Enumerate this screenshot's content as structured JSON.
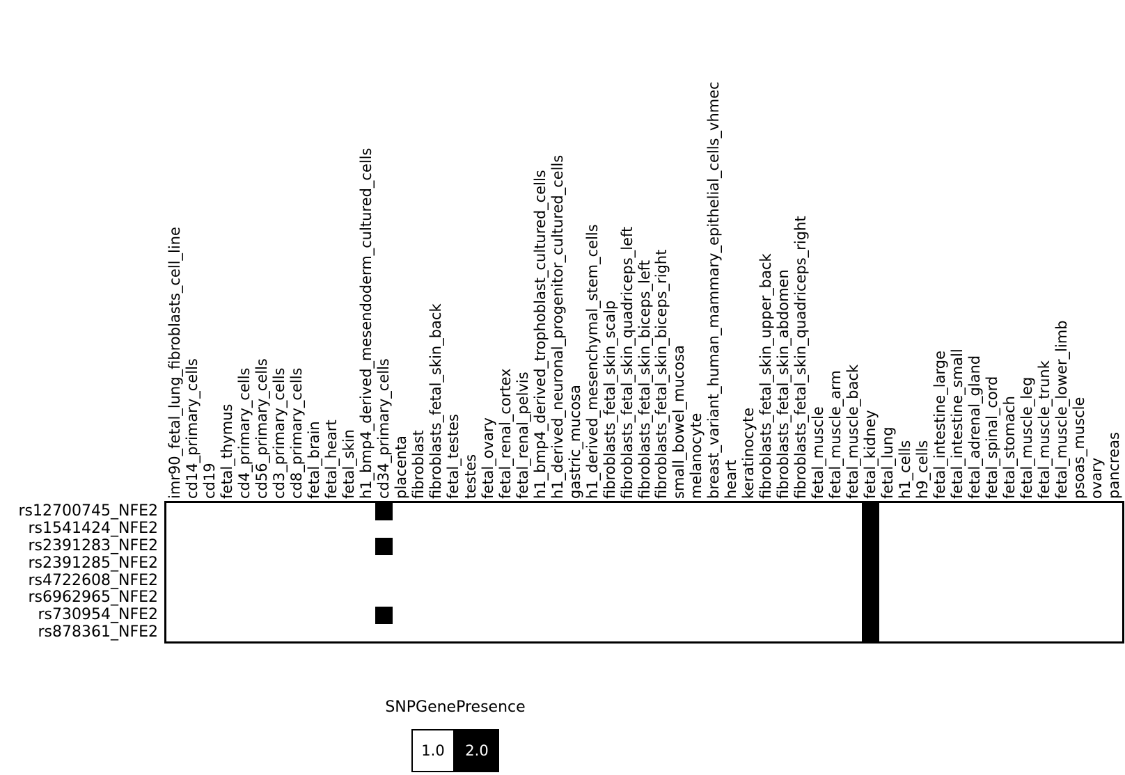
{
  "figure": {
    "background": "#ffffff",
    "grid_border_color": "#000000",
    "cell_on_color": "#000000",
    "cell_off_color": "#ffffff"
  },
  "legend": {
    "title": "SNPGenePresence",
    "items": [
      {
        "label": "1.0",
        "color": "#ffffff",
        "text_color": "#000000"
      },
      {
        "label": "2.0",
        "color": "#000000",
        "text_color": "#ffffff"
      }
    ]
  },
  "chart_data": {
    "type": "heatmap",
    "legend_title": "SNPGenePresence",
    "value_scale": {
      "min": 1.0,
      "max": 2.0,
      "min_color": "#ffffff",
      "max_color": "#000000"
    },
    "rows": [
      "rs12700745_NFE2",
      "rs1541424_NFE2",
      "rs2391283_NFE2",
      "rs2391285_NFE2",
      "rs4722608_NFE2",
      "rs6962965_NFE2",
      "rs730954_NFE2",
      "rs878361_NFE2"
    ],
    "columns": [
      "imr90_fetal_lung_fibroblasts_cell_line",
      "cd14_primary_cells",
      "cd19",
      "fetal_thymus",
      "cd4_primary_cells",
      "cd56_primary_cells",
      "cd3_primary_cells",
      "cd8_primary_cells",
      "fetal_brain",
      "fetal_heart",
      "fetal_skin",
      "h1_bmp4_derived_mesendoderm_cultured_cells",
      "cd34_primary_cells",
      "placenta",
      "fibroblast",
      "fibroblasts_fetal_skin_back",
      "fetal_testes",
      "testes",
      "fetal_ovary",
      "fetal_renal_cortex",
      "fetal_renal_pelvis",
      "h1_bmp4_derived_trophoblast_cultured_cells",
      "h1_derived_neuronal_progenitor_cultured_cells",
      "gastric_mucosa",
      "h1_derived_mesenchymal_stem_cells",
      "fibroblasts_fetal_skin_scalp",
      "fibroblasts_fetal_skin_quadriceps_left",
      "fibroblasts_fetal_skin_biceps_left",
      "fibroblasts_fetal_skin_biceps_right",
      "small_bowel_mucosa",
      "melanocyte",
      "breast_variant_human_mammary_epithelial_cells_vhmec",
      "heart",
      "keratinocyte",
      "fibroblasts_fetal_skin_upper_back",
      "fibroblasts_fetal_skin_abdomen",
      "fibroblasts_fetal_skin_quadriceps_right",
      "fetal_muscle",
      "fetal_muscle_arm",
      "fetal_muscle_back",
      "fetal_kidney",
      "fetal_lung",
      "h1_cells",
      "h9_cells",
      "fetal_intestine_large",
      "fetal_intestine_small",
      "fetal_adrenal_gland",
      "fetal_spinal_cord",
      "fetal_stomach",
      "fetal_muscle_leg",
      "fetal_muscle_trunk",
      "fetal_muscle_lower_limb",
      "psoas_muscle",
      "ovary",
      "pancreas"
    ],
    "default_value": 1.0,
    "cells_with_value_2": [
      {
        "row": "rs12700745_NFE2",
        "col": "cd34_primary_cells"
      },
      {
        "row": "rs2391283_NFE2",
        "col": "cd34_primary_cells"
      },
      {
        "row": "rs730954_NFE2",
        "col": "cd34_primary_cells"
      },
      {
        "row": "rs12700745_NFE2",
        "col": "fetal_kidney"
      },
      {
        "row": "rs1541424_NFE2",
        "col": "fetal_kidney"
      },
      {
        "row": "rs2391283_NFE2",
        "col": "fetal_kidney"
      },
      {
        "row": "rs2391285_NFE2",
        "col": "fetal_kidney"
      },
      {
        "row": "rs4722608_NFE2",
        "col": "fetal_kidney"
      },
      {
        "row": "rs6962965_NFE2",
        "col": "fetal_kidney"
      },
      {
        "row": "rs730954_NFE2",
        "col": "fetal_kidney"
      },
      {
        "row": "rs878361_NFE2",
        "col": "fetal_kidney"
      }
    ]
  }
}
